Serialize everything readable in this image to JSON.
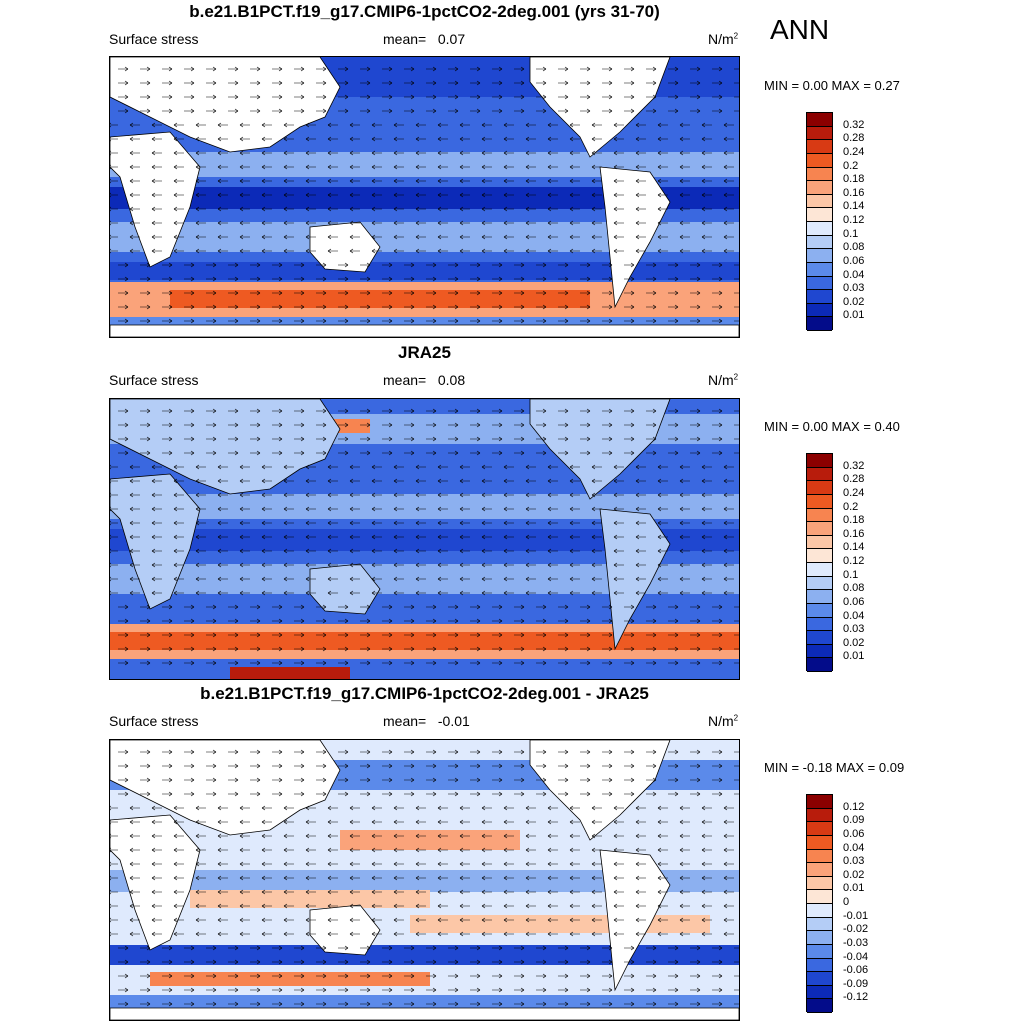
{
  "season": "ANN",
  "panels": [
    {
      "title": "b.e21.B1PCT.f19_g17.CMIP6-1pctCO2-2deg.001 (yrs 31-70)",
      "variable": "Surface stress",
      "mean_label": "mean=",
      "mean_value": "0.07",
      "units_base": "N/m",
      "units_exp": "2",
      "minmax": "MIN =   0.00 MAX =   0.27",
      "colorbar_labels": [
        "0.32",
        "0.28",
        "0.24",
        "0.2",
        "0.18",
        "0.16",
        "0.14",
        "0.12",
        "0.1",
        "0.08",
        "0.06",
        "0.04",
        "0.03",
        "0.02",
        "0.01"
      ],
      "colorbar_colors": [
        "#8b0000",
        "#b81c0c",
        "#d83a14",
        "#ee5a22",
        "#f78450",
        "#faa37a",
        "#fcc7a7",
        "#fde6d6",
        "#dfeafd",
        "#b4cdf6",
        "#8cb0f0",
        "#5b8aea",
        "#3a68e0",
        "#1f47d0",
        "#0c2ab8",
        "#030c8a"
      ]
    },
    {
      "title": "JRA25",
      "variable": "Surface stress",
      "mean_label": "mean=",
      "mean_value": "0.08",
      "units_base": "N/m",
      "units_exp": "2",
      "minmax": "MIN =   0.00 MAX =   0.40",
      "colorbar_labels": [
        "0.32",
        "0.28",
        "0.24",
        "0.2",
        "0.18",
        "0.16",
        "0.14",
        "0.12",
        "0.1",
        "0.08",
        "0.06",
        "0.04",
        "0.03",
        "0.02",
        "0.01"
      ],
      "colorbar_colors": [
        "#8b0000",
        "#b81c0c",
        "#d83a14",
        "#ee5a22",
        "#f78450",
        "#faa37a",
        "#fcc7a7",
        "#fde6d6",
        "#dfeafd",
        "#b4cdf6",
        "#8cb0f0",
        "#5b8aea",
        "#3a68e0",
        "#1f47d0",
        "#0c2ab8",
        "#030c8a"
      ]
    },
    {
      "title": "b.e21.B1PCT.f19_g17.CMIP6-1pctCO2-2deg.001 - JRA25",
      "variable": "Surface stress",
      "mean_label": "mean=",
      "mean_value": "-0.01",
      "units_base": "N/m",
      "units_exp": "2",
      "minmax": "MIN =  -0.18 MAX =   0.09",
      "colorbar_labels": [
        "0.12",
        "0.09",
        "0.06",
        "0.04",
        "0.03",
        "0.02",
        "0.01",
        "0",
        "-0.01",
        "-0.02",
        "-0.03",
        "-0.04",
        "-0.06",
        "-0.09",
        "-0.12"
      ],
      "colorbar_colors": [
        "#8b0000",
        "#b81c0c",
        "#d83a14",
        "#ee5a22",
        "#f78450",
        "#faa37a",
        "#fcc7a7",
        "#fde6d6",
        "#dfeafd",
        "#b4cdf6",
        "#8cb0f0",
        "#5b8aea",
        "#3a68e0",
        "#1f47d0",
        "#0c2ab8",
        "#030c8a"
      ]
    }
  ]
}
